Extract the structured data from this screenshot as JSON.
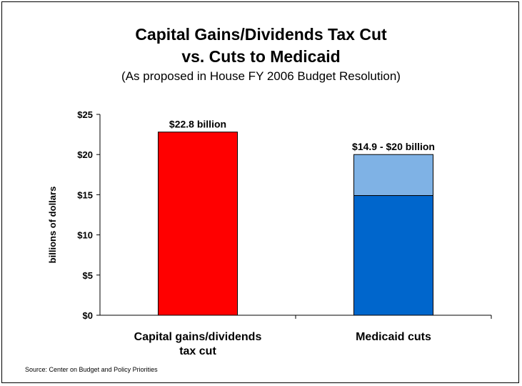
{
  "chart_data": {
    "type": "bar",
    "title": "Capital Gains/Dividends Tax Cut",
    "title_line2": "vs. Cuts to Medicaid",
    "subtitle": "(As proposed in House FY 2006 Budget Resolution)",
    "ylabel": "billions of dollars",
    "xlabel": "",
    "ylim": [
      0,
      25
    ],
    "yticks": [
      0,
      5,
      10,
      15,
      20,
      25
    ],
    "ytick_labels": [
      "$0",
      "$5",
      "$10",
      "$15",
      "$20",
      "$25"
    ],
    "categories": [
      [
        "Capital gains/dividends",
        "tax cut"
      ],
      [
        "Medicaid cuts"
      ]
    ],
    "bars": [
      {
        "segments": [
          {
            "value": 22.8,
            "color": "#ff0000"
          }
        ],
        "data_label": "$22.8 billion"
      },
      {
        "segments": [
          {
            "value": 14.9,
            "color": "#0066cc"
          },
          {
            "value": 5.1,
            "color": "#7fb2e5"
          }
        ],
        "data_label": "$14.9 - $20 billion"
      }
    ],
    "grid": false,
    "legend": "none"
  },
  "source": "Source:  Center on Budget and Policy Priorities"
}
